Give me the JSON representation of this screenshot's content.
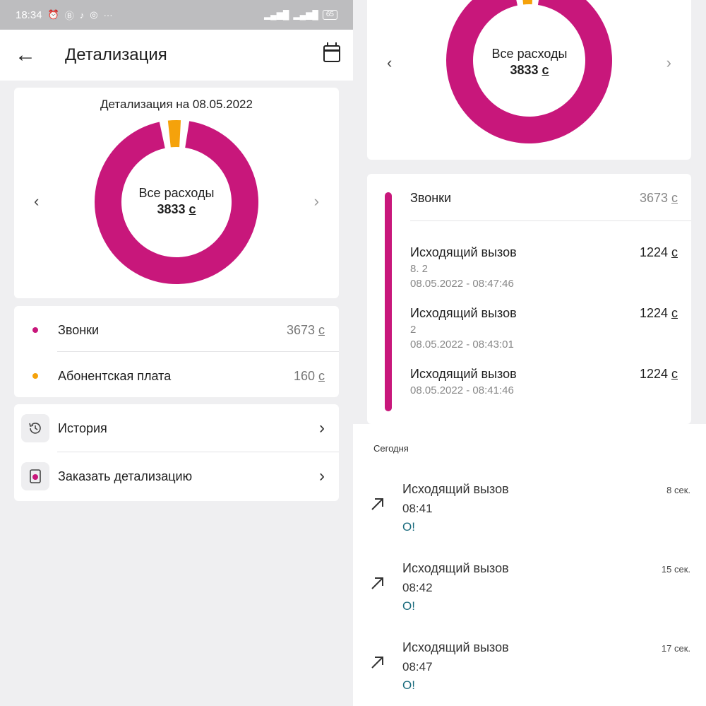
{
  "colors": {
    "accent": "#c8177b",
    "fee": "#f5a20b"
  },
  "status_bar": {
    "time": "18:34",
    "battery": "65"
  },
  "app_bar": {
    "title": "Детализация"
  },
  "chart_card": {
    "title": "Детализация на 08.05.2022",
    "center_label": "Все расходы",
    "center_value": "3833",
    "currency": "с"
  },
  "chart_data": {
    "type": "pie",
    "categories": [
      "Звонки",
      "Абонентская плата"
    ],
    "values": [
      3673,
      160
    ]
  },
  "categories": [
    {
      "name": "Звонки",
      "amount": "3673",
      "currency": "с"
    },
    {
      "name": "Абонентская плата",
      "amount": "160",
      "currency": "с"
    }
  ],
  "menu": [
    {
      "label": "История"
    },
    {
      "label": "Заказать детализацию"
    }
  ],
  "right_chart": {
    "center_label": "Все расходы",
    "center_value": "3833",
    "currency": "с"
  },
  "calls_section": {
    "title": "Звонки",
    "total": "3673",
    "currency": "с",
    "items": [
      {
        "type": "Исходящий вызов",
        "number": "8.        2",
        "datetime": "08.05.2022 - 08:47:46",
        "amount": "1224",
        "currency": "с"
      },
      {
        "type": "Исходящий вызов",
        "number": "        2",
        "datetime": "08.05.2022 - 08:43:01",
        "amount": "1224",
        "currency": "с"
      },
      {
        "type": "Исходящий вызов",
        "number": "",
        "datetime": "08.05.2022 - 08:41:46",
        "amount": "1224",
        "currency": "с"
      }
    ]
  },
  "call_log": {
    "section": "Сегодня",
    "items": [
      {
        "type": "Исходящий вызов",
        "time": "08:41",
        "operator": "О!",
        "duration": "8 сек."
      },
      {
        "type": "Исходящий вызов",
        "time": "08:42",
        "operator": "О!",
        "duration": "15 сек."
      },
      {
        "type": "Исходящий вызов",
        "time": "08:47",
        "operator": "О!",
        "duration": "17 сек."
      }
    ]
  }
}
